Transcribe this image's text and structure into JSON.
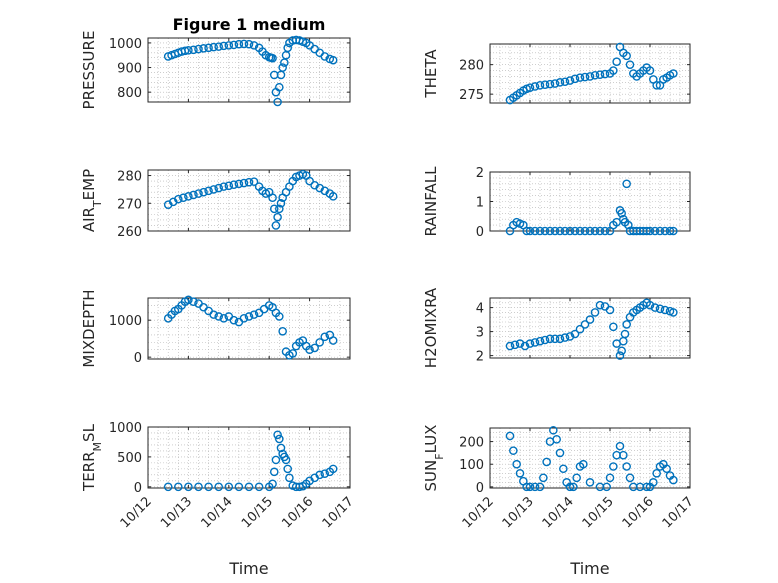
{
  "figure": {
    "title": "Figure 1 medium"
  },
  "marker_color": "#0072BD",
  "chart_data": [
    {
      "type": "scatter",
      "title": "Figure 1 medium",
      "ylabel": "PRESSURE",
      "xlabel": "",
      "xlim": [
        "10/12",
        "10/17"
      ],
      "ylim": [
        760,
        1020
      ],
      "yticks": [
        800,
        900,
        1000
      ],
      "xtick_labels": [
        "10/12",
        "10/13",
        "10/14",
        "10/15",
        "10/16",
        "10/17"
      ],
      "x": [
        "10/12 12:00",
        "10/12 14:00",
        "10/12 16:00",
        "10/12 18:00",
        "10/12 20:00",
        "10/12 22:00",
        "10/13 00:00",
        "10/13 03:00",
        "10/13 06:00",
        "10/13 09:00",
        "10/13 12:00",
        "10/13 15:00",
        "10/13 18:00",
        "10/13 21:00",
        "10/14 00:00",
        "10/14 03:00",
        "10/14 06:00",
        "10/14 09:00",
        "10/14 12:00",
        "10/14 15:00",
        "10/14 18:00",
        "10/14 20:00",
        "10/14 22:00",
        "10/15 00:00",
        "10/15 01:00",
        "10/15 02:00",
        "10/15 03:00",
        "10/15 04:00",
        "10/15 05:00",
        "10/15 06:00",
        "10/15 07:00",
        "10/15 08:00",
        "10/15 09:00",
        "10/15 10:00",
        "10/15 11:00",
        "10/15 12:00",
        "10/15 14:00",
        "10/15 16:00",
        "10/15 18:00",
        "10/15 20:00",
        "10/15 22:00",
        "10/16 00:00",
        "10/16 03:00",
        "10/16 06:00",
        "10/16 09:00",
        "10/16 12:00",
        "10/16 14:00"
      ],
      "y": [
        945,
        950,
        955,
        960,
        965,
        968,
        970,
        972,
        975,
        978,
        980,
        983,
        985,
        988,
        990,
        992,
        995,
        996,
        995,
        990,
        980,
        965,
        950,
        942,
        940,
        938,
        870,
        800,
        760,
        820,
        870,
        900,
        920,
        950,
        980,
        1000,
        1010,
        1012,
        1010,
        1005,
        1000,
        990,
        975,
        960,
        945,
        935,
        930
      ]
    },
    {
      "type": "scatter",
      "title": "",
      "ylabel": "THETA",
      "xlabel": "",
      "xlim": [
        "10/12",
        "10/17"
      ],
      "ylim": [
        273.5,
        283.5
      ],
      "yticks": [
        275,
        280
      ],
      "xtick_labels": [
        "10/12",
        "10/13",
        "10/14",
        "10/15",
        "10/16",
        "10/17"
      ],
      "x": [
        "10/12 12:00",
        "10/12 14:00",
        "10/12 16:00",
        "10/12 18:00",
        "10/12 20:00",
        "10/12 22:00",
        "10/13 00:00",
        "10/13 03:00",
        "10/13 06:00",
        "10/13 09:00",
        "10/13 12:00",
        "10/13 15:00",
        "10/13 18:00",
        "10/13 21:00",
        "10/14 00:00",
        "10/14 03:00",
        "10/14 06:00",
        "10/14 09:00",
        "10/14 12:00",
        "10/14 15:00",
        "10/14 18:00",
        "10/14 21:00",
        "10/15 00:00",
        "10/15 02:00",
        "10/15 04:00",
        "10/15 06:00",
        "10/15 08:00",
        "10/15 10:00",
        "10/15 12:00",
        "10/15 14:00",
        "10/15 16:00",
        "10/15 18:00",
        "10/15 20:00",
        "10/15 22:00",
        "10/16 00:00",
        "10/16 02:00",
        "10/16 04:00",
        "10/16 06:00",
        "10/16 08:00",
        "10/16 10:00",
        "10/16 12:00",
        "10/16 14:00"
      ],
      "y": [
        274,
        274.4,
        274.8,
        275.2,
        275.6,
        275.9,
        276.1,
        276.3,
        276.5,
        276.6,
        276.7,
        276.8,
        277,
        277.1,
        277.3,
        277.6,
        277.8,
        277.9,
        278,
        278.2,
        278.3,
        278.4,
        278.5,
        279,
        280.5,
        283,
        282,
        281.5,
        280,
        278.5,
        278,
        278.5,
        279,
        279.5,
        279,
        277.5,
        276.5,
        276.5,
        277.5,
        277.8,
        278.2,
        278.5
      ]
    },
    {
      "type": "scatter",
      "title": "",
      "ylabel": "AIR_TEMP",
      "xlabel": "",
      "xlim": [
        "10/12",
        "10/17"
      ],
      "ylim": [
        260,
        282
      ],
      "yticks": [
        260,
        270,
        280
      ],
      "xtick_labels": [
        "10/12",
        "10/13",
        "10/14",
        "10/15",
        "10/16",
        "10/17"
      ],
      "x": [
        "10/12 12:00",
        "10/12 15:00",
        "10/12 18:00",
        "10/12 21:00",
        "10/13 00:00",
        "10/13 03:00",
        "10/13 06:00",
        "10/13 09:00",
        "10/13 12:00",
        "10/13 15:00",
        "10/13 18:00",
        "10/13 21:00",
        "10/14 00:00",
        "10/14 03:00",
        "10/14 06:00",
        "10/14 09:00",
        "10/14 12:00",
        "10/14 15:00",
        "10/14 18:00",
        "10/14 20:00",
        "10/14 22:00",
        "10/15 00:00",
        "10/15 02:00",
        "10/15 03:00",
        "10/15 04:00",
        "10/15 05:00",
        "10/15 06:00",
        "10/15 07:00",
        "10/15 08:00",
        "10/15 10:00",
        "10/15 12:00",
        "10/15 14:00",
        "10/15 16:00",
        "10/15 18:00",
        "10/15 20:00",
        "10/15 22:00",
        "10/16 00:00",
        "10/16 03:00",
        "10/16 06:00",
        "10/16 09:00",
        "10/16 12:00",
        "10/16 14:00"
      ],
      "y": [
        269.5,
        270.5,
        271.5,
        272,
        272.5,
        273,
        273.5,
        274,
        274.5,
        275,
        275.5,
        276,
        276.3,
        276.7,
        277,
        277.3,
        277.6,
        277.8,
        276,
        274.5,
        273.5,
        274,
        272,
        268,
        262,
        265,
        268,
        270,
        272,
        274,
        276,
        278,
        279.5,
        280,
        280.5,
        280,
        278,
        276.5,
        275.5,
        274.5,
        273.5,
        272.5
      ]
    },
    {
      "type": "scatter",
      "title": "",
      "ylabel": "RAINFALL",
      "xlabel": "",
      "xlim": [
        "10/12",
        "10/17"
      ],
      "ylim": [
        0,
        2
      ],
      "yticks": [
        0,
        1,
        2
      ],
      "xtick_labels": [
        "10/12",
        "10/13",
        "10/14",
        "10/15",
        "10/16",
        "10/17"
      ],
      "x": [
        "10/12 12:00",
        "10/12 14:00",
        "10/12 16:00",
        "10/12 18:00",
        "10/12 20:00",
        "10/12 22:00",
        "10/13 00:00",
        "10/13 03:00",
        "10/13 06:00",
        "10/13 09:00",
        "10/13 12:00",
        "10/13 15:00",
        "10/13 18:00",
        "10/13 21:00",
        "10/14 00:00",
        "10/14 03:00",
        "10/14 06:00",
        "10/14 09:00",
        "10/14 12:00",
        "10/14 15:00",
        "10/14 18:00",
        "10/14 21:00",
        "10/15 00:00",
        "10/15 02:00",
        "10/15 04:00",
        "10/15 06:00",
        "10/15 07:00",
        "10/15 08:00",
        "10/15 09:00",
        "10/15 10:00",
        "10/15 11:00",
        "10/15 12:00",
        "10/15 14:00",
        "10/15 16:00",
        "10/15 18:00",
        "10/15 20:00",
        "10/15 22:00",
        "10/16 00:00",
        "10/16 03:00",
        "10/16 06:00",
        "10/16 09:00",
        "10/16 12:00",
        "10/16 14:00"
      ],
      "y": [
        0,
        0.2,
        0.3,
        0.25,
        0.2,
        0,
        0,
        0,
        0,
        0,
        0,
        0,
        0,
        0,
        0,
        0,
        0,
        0,
        0,
        0,
        0,
        0,
        0,
        0.2,
        0.3,
        0.7,
        0.6,
        0.4,
        0.3,
        1.6,
        0.2,
        0,
        0,
        0,
        0,
        0,
        0,
        0,
        0,
        0,
        0,
        0,
        0
      ]
    },
    {
      "type": "scatter",
      "title": "",
      "ylabel": "MIXDEPTH",
      "xlabel": "",
      "xlim": [
        "10/12",
        "10/17"
      ],
      "ylim": [
        -50,
        1600
      ],
      "yticks": [
        0,
        1000
      ],
      "xtick_labels": [
        "10/12",
        "10/13",
        "10/14",
        "10/15",
        "10/16",
        "10/17"
      ],
      "x": [
        "10/12 12:00",
        "10/12 14:00",
        "10/12 16:00",
        "10/12 18:00",
        "10/12 20:00",
        "10/12 22:00",
        "10/13 00:00",
        "10/13 03:00",
        "10/13 06:00",
        "10/13 09:00",
        "10/13 12:00",
        "10/13 15:00",
        "10/13 18:00",
        "10/13 21:00",
        "10/14 00:00",
        "10/14 03:00",
        "10/14 06:00",
        "10/14 09:00",
        "10/14 12:00",
        "10/14 15:00",
        "10/14 18:00",
        "10/14 21:00",
        "10/15 00:00",
        "10/15 02:00",
        "10/15 04:00",
        "10/15 06:00",
        "10/15 08:00",
        "10/15 10:00",
        "10/15 12:00",
        "10/15 14:00",
        "10/15 16:00",
        "10/15 18:00",
        "10/15 20:00",
        "10/15 22:00",
        "10/16 00:00",
        "10/16 03:00",
        "10/16 06:00",
        "10/16 09:00",
        "10/16 12:00",
        "10/16 14:00"
      ],
      "y": [
        1050,
        1150,
        1250,
        1300,
        1400,
        1500,
        1550,
        1500,
        1450,
        1350,
        1250,
        1150,
        1100,
        1050,
        1100,
        1000,
        950,
        1050,
        1100,
        1150,
        1200,
        1300,
        1400,
        1350,
        1200,
        1100,
        700,
        150,
        50,
        100,
        300,
        400,
        450,
        300,
        200,
        250,
        400,
        550,
        600,
        450
      ]
    },
    {
      "type": "scatter",
      "title": "",
      "ylabel": "H2OMIXRA",
      "xlabel": "",
      "xlim": [
        "10/12",
        "10/17"
      ],
      "ylim": [
        1.9,
        4.4
      ],
      "yticks": [
        2,
        3,
        4
      ],
      "xtick_labels": [
        "10/12",
        "10/13",
        "10/14",
        "10/15",
        "10/16",
        "10/17"
      ],
      "x": [
        "10/12 12:00",
        "10/12 15:00",
        "10/12 18:00",
        "10/12 21:00",
        "10/13 00:00",
        "10/13 03:00",
        "10/13 06:00",
        "10/13 09:00",
        "10/13 12:00",
        "10/13 15:00",
        "10/13 18:00",
        "10/13 21:00",
        "10/14 00:00",
        "10/14 03:00",
        "10/14 06:00",
        "10/14 09:00",
        "10/14 12:00",
        "10/14 15:00",
        "10/14 18:00",
        "10/14 21:00",
        "10/15 00:00",
        "10/15 02:00",
        "10/15 04:00",
        "10/15 06:00",
        "10/15 07:00",
        "10/15 08:00",
        "10/15 09:00",
        "10/15 10:00",
        "10/15 12:00",
        "10/15 14:00",
        "10/15 16:00",
        "10/15 18:00",
        "10/15 20:00",
        "10/15 22:00",
        "10/16 00:00",
        "10/16 03:00",
        "10/16 06:00",
        "10/16 09:00",
        "10/16 12:00",
        "10/16 14:00"
      ],
      "y": [
        2.4,
        2.45,
        2.5,
        2.4,
        2.5,
        2.55,
        2.6,
        2.65,
        2.7,
        2.7,
        2.7,
        2.75,
        2.8,
        2.9,
        3.1,
        3.3,
        3.5,
        3.8,
        4.1,
        4.05,
        3.9,
        3.2,
        2.5,
        2,
        2.2,
        2.6,
        2.9,
        3.3,
        3.6,
        3.8,
        3.9,
        4,
        4.1,
        4.2,
        4.1,
        4,
        3.95,
        3.9,
        3.85,
        3.8
      ]
    },
    {
      "type": "scatter",
      "title": "",
      "ylabel": "TERR_MSL",
      "xlabel": "Time",
      "xlim": [
        "10/12",
        "10/17"
      ],
      "ylim": [
        -20,
        1000
      ],
      "yticks": [
        0,
        500,
        1000
      ],
      "xtick_labels": [
        "10/12",
        "10/13",
        "10/14",
        "10/15",
        "10/16",
        "10/17"
      ],
      "x": [
        "10/12 12:00",
        "10/12 18:00",
        "10/13 00:00",
        "10/13 06:00",
        "10/13 12:00",
        "10/13 18:00",
        "10/14 00:00",
        "10/14 06:00",
        "10/14 12:00",
        "10/14 18:00",
        "10/15 00:00",
        "10/15 02:00",
        "10/15 03:00",
        "10/15 04:00",
        "10/15 05:00",
        "10/15 06:00",
        "10/15 07:00",
        "10/15 08:00",
        "10/15 09:00",
        "10/15 10:00",
        "10/15 11:00",
        "10/15 12:00",
        "10/15 14:00",
        "10/15 16:00",
        "10/15 18:00",
        "10/15 20:00",
        "10/15 22:00",
        "10/16 00:00",
        "10/16 03:00",
        "10/16 06:00",
        "10/16 09:00",
        "10/16 12:00",
        "10/16 14:00"
      ],
      "y": [
        0,
        0,
        0,
        0,
        0,
        0,
        0,
        0,
        0,
        0,
        0,
        50,
        250,
        450,
        870,
        800,
        650,
        550,
        500,
        450,
        300,
        150,
        20,
        0,
        0,
        10,
        50,
        100,
        150,
        200,
        220,
        250,
        300
      ]
    },
    {
      "type": "scatter",
      "title": "",
      "ylabel": "SUN_FLUX",
      "xlabel": "Time",
      "xlim": [
        "10/12",
        "10/17"
      ],
      "ylim": [
        -5,
        260
      ],
      "yticks": [
        0,
        100,
        200
      ],
      "xtick_labels": [
        "10/12",
        "10/13",
        "10/14",
        "10/15",
        "10/16",
        "10/17"
      ],
      "x": [
        "10/12 12:00",
        "10/12 14:00",
        "10/12 16:00",
        "10/12 18:00",
        "10/12 20:00",
        "10/12 22:00",
        "10/13 00:00",
        "10/13 03:00",
        "10/13 06:00",
        "10/13 08:00",
        "10/13 10:00",
        "10/13 12:00",
        "10/13 14:00",
        "10/13 16:00",
        "10/13 18:00",
        "10/13 20:00",
        "10/13 22:00",
        "10/14 00:00",
        "10/14 02:00",
        "10/14 04:00",
        "10/14 06:00",
        "10/14 08:00",
        "10/14 12:00",
        "10/14 18:00",
        "10/14 22:00",
        "10/15 00:00",
        "10/15 02:00",
        "10/15 04:00",
        "10/15 06:00",
        "10/15 08:00",
        "10/15 10:00",
        "10/15 12:00",
        "10/15 14:00",
        "10/15 18:00",
        "10/15 22:00",
        "10/16 00:00",
        "10/16 02:00",
        "10/16 04:00",
        "10/16 06:00",
        "10/16 08:00",
        "10/16 10:00",
        "10/16 12:00",
        "10/16 14:00"
      ],
      "y": [
        225,
        160,
        100,
        60,
        25,
        0,
        0,
        0,
        0,
        40,
        110,
        200,
        250,
        210,
        150,
        80,
        20,
        0,
        0,
        40,
        90,
        100,
        20,
        0,
        0,
        40,
        90,
        140,
        180,
        140,
        90,
        40,
        0,
        0,
        0,
        0,
        20,
        60,
        90,
        100,
        80,
        50,
        30
      ]
    }
  ]
}
